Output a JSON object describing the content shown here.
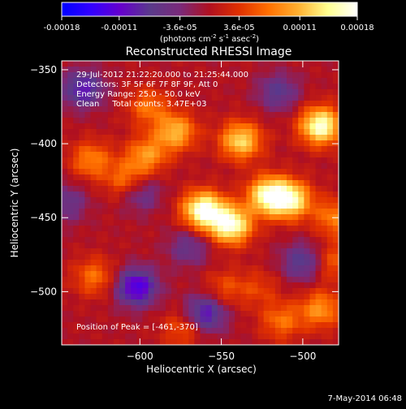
{
  "colorbar": {
    "tick_labels": [
      "-0.00018",
      "-0.00011",
      "-3.6e-05",
      "3.6e-05",
      "0.00011",
      "0.00018"
    ],
    "tick_values": [
      -0.00018,
      -0.00011,
      -3.6e-05,
      3.6e-05,
      0.00011,
      0.00018
    ],
    "range": [
      -0.00018,
      0.00018
    ],
    "unit_prefix": "(photons cm",
    "unit_exp1": "-2",
    "unit_mid": " s",
    "unit_exp2": "-1",
    "unit_mid2": " asec",
    "unit_exp3": "-2",
    "unit_suffix": ")",
    "colors": [
      "#0000ff",
      "#3300ff",
      "#6600cc",
      "#5a3a8a",
      "#7a2a7a",
      "#b01020",
      "#e03000",
      "#ff7000",
      "#ffb030",
      "#ffff90",
      "#ffffff"
    ]
  },
  "chart_data": {
    "type": "heatmap",
    "title": "Reconstructed RHESSI Image",
    "xlabel": "Heliocentric X (arcsec)",
    "ylabel": "Heliocentric Y (arcsec)",
    "xlim": [
      -648,
      -478
    ],
    "ylim": [
      -536,
      -344
    ],
    "x_ticks": [
      -600,
      -550,
      -500
    ],
    "x_tick_labels": [
      "−600",
      "−550",
      "−500"
    ],
    "y_ticks": [
      -350,
      -400,
      -450,
      -500
    ],
    "y_tick_labels": [
      "−350",
      "−400",
      "−450",
      "−500"
    ],
    "peak": [
      -461,
      -370
    ],
    "sources": [
      {
        "x": -561,
        "y": -445,
        "amp": 0.00018
      },
      {
        "x": -544,
        "y": -455,
        "amp": 0.00017
      },
      {
        "x": -521,
        "y": -435,
        "amp": 0.00016
      },
      {
        "x": -507,
        "y": -438,
        "amp": 0.00014
      },
      {
        "x": -489,
        "y": -388,
        "amp": 0.00017
      },
      {
        "x": -538,
        "y": -398,
        "amp": 0.00013
      },
      {
        "x": -578,
        "y": -392,
        "amp": 0.00011
      },
      {
        "x": -596,
        "y": -408,
        "amp": 9e-05
      },
      {
        "x": -608,
        "y": -425,
        "amp": 8e-05
      },
      {
        "x": -630,
        "y": -411,
        "amp": 8e-05
      },
      {
        "x": -628,
        "y": -490,
        "amp": 7e-05
      },
      {
        "x": -489,
        "y": -512,
        "amp": 9e-05
      },
      {
        "x": -513,
        "y": -520,
        "amp": 7e-05
      },
      {
        "x": -548,
        "y": -498,
        "amp": 5e-05
      },
      {
        "x": -595,
        "y": -375,
        "amp": 7e-05
      },
      {
        "x": -480,
        "y": -450,
        "amp": 8e-05
      },
      {
        "x": -481,
        "y": -480,
        "amp": 6e-05
      },
      {
        "x": -573,
        "y": -525,
        "amp": 6e-05
      },
      {
        "x": -527,
        "y": -498,
        "amp": 4e-05
      }
    ],
    "negative_regions": [
      {
        "x": -602,
        "y": -497,
        "amp": -0.00013
      },
      {
        "x": -560,
        "y": -515,
        "amp": -0.00011
      },
      {
        "x": -635,
        "y": -363,
        "amp": -0.0001
      },
      {
        "x": -600,
        "y": -433,
        "amp": -7e-05
      },
      {
        "x": -570,
        "y": -470,
        "amp": -6e-05
      },
      {
        "x": -500,
        "y": -480,
        "amp": -8e-05
      },
      {
        "x": -645,
        "y": -440,
        "amp": -6e-05
      },
      {
        "x": -515,
        "y": -365,
        "amp": -7e-05
      }
    ]
  },
  "annotations": {
    "time_range": "29-Jul-2012 21:22:20.000 to 21:25:44.000",
    "detectors": "Detectors: 3F 5F 6F 7F 8F 9F, Att 0",
    "energy": "Energy Range: 25.0 - 50.0 keV",
    "clean": "Clean     Total counts: 3.47E+03",
    "peak_label": "Position of Peak = [-461,-370]"
  },
  "footer": {
    "timestamp": "7-May-2014 06:48"
  }
}
